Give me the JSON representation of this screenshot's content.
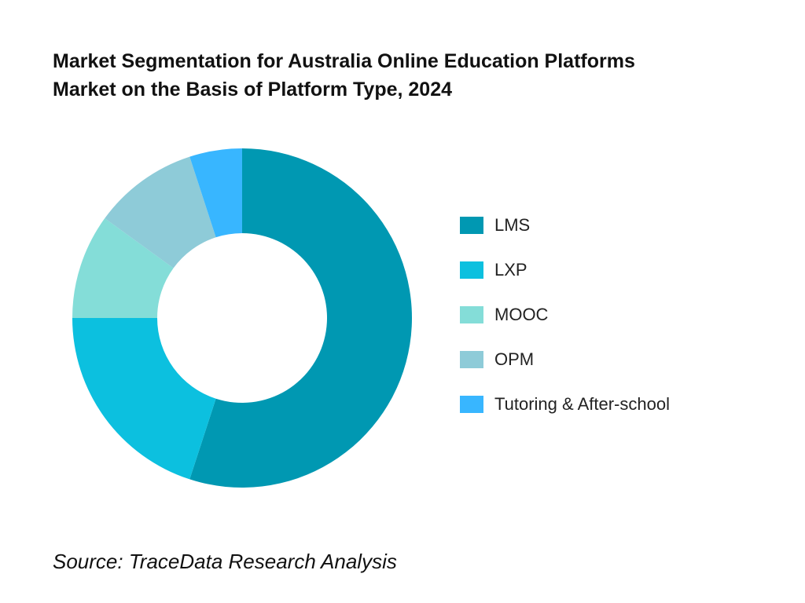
{
  "title": {
    "line1": "Market Segmentation for Australia Online Education Platforms",
    "line2": "Market on the Basis of Platform Type, 2024"
  },
  "source": "Source: TraceData Research Analysis",
  "chart_data": {
    "type": "pie",
    "donut": true,
    "title": "Market Segmentation for Australia Online Education Platforms Market on the Basis of Platform Type, 2024",
    "legend_position": "right",
    "categories": [
      "LMS",
      "LXP",
      "MOOC",
      "OPM",
      "Tutoring & After-school"
    ],
    "values": [
      55,
      20,
      10,
      10,
      5
    ],
    "colors": [
      "#0098B2",
      "#0CC0DF",
      "#84DDD8",
      "#8ECBD8",
      "#38B6FF"
    ]
  }
}
